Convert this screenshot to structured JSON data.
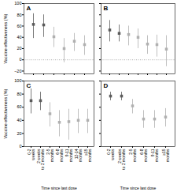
{
  "chart_data": [
    {
      "type": "scatter",
      "title": "A",
      "marker": "square",
      "categories": [
        null,
        null,
        null,
        null,
        null,
        null
      ],
      "values": [
        63,
        62,
        41,
        20,
        33,
        27
      ],
      "yerr_low": [
        25,
        22,
        19,
        25,
        18,
        19
      ],
      "yerr_high": [
        19,
        18,
        17,
        18,
        14,
        16
      ],
      "colors": [
        "#5a5a5a",
        "#5a5a5a",
        "#b0b0b0",
        "#b0b0b0",
        "#b0b0b0",
        "#b0b0b0"
      ],
      "ylim": [
        -25,
        100
      ],
      "yticks": [
        -20,
        0,
        20,
        40,
        60,
        80,
        100
      ],
      "ylabel": "Vaccine effectiveness (%)",
      "hline": 0,
      "tick_labels": "y"
    },
    {
      "type": "scatter",
      "title": "B",
      "marker": "square",
      "categories": [
        null,
        null,
        null,
        null,
        null,
        null,
        null
      ],
      "values": [
        53,
        47,
        45,
        40,
        28,
        27,
        19
      ],
      "yerr_low": [
        21,
        15,
        20,
        20,
        18,
        22,
        31
      ],
      "yerr_high": [
        17,
        15,
        15,
        15,
        15,
        17,
        24
      ],
      "colors": [
        "#5a5a5a",
        "#5a5a5a",
        "#b0b0b0",
        "#b0b0b0",
        "#b0b0b0",
        "#b0b0b0",
        "#b0b0b0"
      ],
      "ylim": [
        -25,
        100
      ],
      "yticks": [
        -20,
        0,
        20,
        40,
        60,
        80,
        100
      ],
      "hline": 0,
      "tick_labels": false
    },
    {
      "type": "scatter",
      "title": "C",
      "marker": "square",
      "categories": [
        "0-2\nweeks",
        "2 weeks\nto 2 months",
        "2-5\nmonths",
        "6-8\nmonths",
        "9-11\nmonths",
        "12-14\nmonths",
        "≥15\nmonths"
      ],
      "values": [
        70,
        70,
        50,
        37,
        38,
        40,
        40
      ],
      "yerr_low": [
        20,
        15,
        20,
        22,
        28,
        20,
        20
      ],
      "yerr_high": [
        18,
        13,
        17,
        18,
        19,
        17,
        17
      ],
      "colors": [
        "#5a5a5a",
        "#5a5a5a",
        "#b0b0b0",
        "#b0b0b0",
        "#b0b0b0",
        "#b0b0b0",
        "#b0b0b0"
      ],
      "ylim": [
        0,
        100
      ],
      "yticks": [
        0,
        20,
        40,
        60,
        80,
        100
      ],
      "ylabel": "Vaccine effectiveness (%)",
      "xlabel": "Time since last dose"
    },
    {
      "type": "scatter",
      "title": "D",
      "marker": "square",
      "categories": [
        "0-2\nweeks",
        "2 weeks\nto 2 months",
        "2-5\nmonths",
        "6-8\nmonths",
        "9-11\nmonths",
        "≥15\nmonths"
      ],
      "values": [
        77,
        77,
        62,
        42,
        42,
        45
      ],
      "yerr_low": [
        7,
        7,
        12,
        14,
        14,
        15
      ],
      "yerr_high": [
        6,
        6,
        10,
        13,
        13,
        13
      ],
      "colors": [
        "#5a5a5a",
        "#5a5a5a",
        "#b0b0b0",
        "#b0b0b0",
        "#b0b0b0",
        "#b0b0b0"
      ],
      "ylim": [
        0,
        100
      ],
      "yticks": [
        0,
        20,
        40,
        60,
        80,
        100
      ],
      "xlabel": "Time since last dose",
      "tick_labels": "x"
    }
  ]
}
